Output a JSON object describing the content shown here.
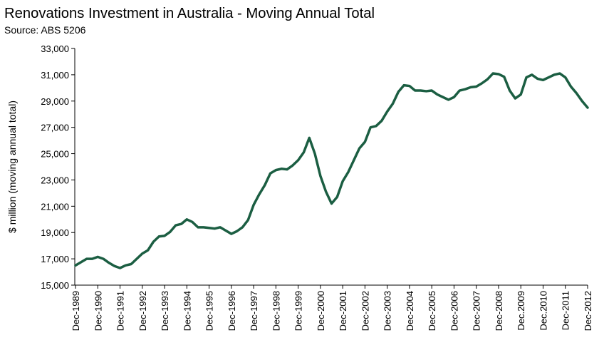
{
  "chart_data": {
    "type": "line",
    "title": "Renovations Investment in Australia - Moving Annual Total",
    "subtitle": "Source: ABS 5206",
    "y_label": "$ million (moving annual total)",
    "categories": [
      "Dec-1989",
      null,
      null,
      null,
      "Dec-1990",
      null,
      null,
      null,
      "Dec-1991",
      null,
      null,
      null,
      "Dec-1992",
      null,
      null,
      null,
      "Dec-1993",
      null,
      null,
      null,
      "Dec-1994",
      null,
      null,
      null,
      "Dec-1995",
      null,
      null,
      null,
      "Dec-1996",
      null,
      null,
      null,
      "Dec-1997",
      null,
      null,
      null,
      "Dec-1998",
      null,
      null,
      null,
      "Dec-1999",
      null,
      null,
      null,
      "Dec-2000",
      null,
      null,
      null,
      "Dec-2001",
      null,
      null,
      null,
      "Dec-2002",
      null,
      null,
      null,
      "Dec-2003",
      null,
      null,
      null,
      "Dec-2004",
      null,
      null,
      null,
      "Dec-2005",
      null,
      null,
      null,
      "Dec-2006",
      null,
      null,
      null,
      "Dec-2007",
      null,
      null,
      null,
      "Dec-2008",
      null,
      null,
      null,
      "Dec.2009",
      null,
      null,
      null,
      "Dec.2010",
      null,
      null,
      null,
      "Dec-2011",
      null,
      null,
      null,
      "Dec-2012"
    ],
    "series": [
      {
        "name": "Renovations investment",
        "color": "#1b5e42",
        "values": [
          16500,
          16750,
          17000,
          17000,
          17150,
          17000,
          16700,
          16450,
          16300,
          16500,
          16600,
          17000,
          17400,
          17650,
          18300,
          18700,
          18750,
          19050,
          19550,
          19650,
          20000,
          19800,
          19400,
          19400,
          19350,
          19300,
          19400,
          19150,
          18900,
          19100,
          19400,
          19950,
          21100,
          21900,
          22600,
          23500,
          23750,
          23850,
          23800,
          24100,
          24500,
          25100,
          26200,
          25000,
          23300,
          22100,
          21200,
          21700,
          22900,
          23600,
          24500,
          25400,
          25900,
          27000,
          27100,
          27500,
          28200,
          28800,
          29700,
          30200,
          30150,
          29800,
          29800,
          29750,
          29800,
          29500,
          29300,
          29100,
          29300,
          29800,
          29900,
          30050,
          30100,
          30350,
          30650,
          31100,
          31050,
          30850,
          29800,
          29200,
          29500,
          30800,
          31000,
          30700,
          30600,
          30800,
          31000,
          31100,
          30800,
          30100,
          29600,
          29000,
          28500
        ]
      }
    ],
    "ylim": [
      15000,
      33000
    ],
    "yticks": [
      {
        "value": 15000,
        "label": "15,000"
      },
      {
        "value": 17000,
        "label": "17,000"
      },
      {
        "value": 19000,
        "label": "19,000"
      },
      {
        "value": 21000,
        "label": "21,000"
      },
      {
        "value": 23000,
        "label": "23,000"
      },
      {
        "value": 25000,
        "label": "25,000"
      },
      {
        "value": 27000,
        "label": "27,000"
      },
      {
        "value": 29000,
        "label": "29,000"
      },
      {
        "value": 31000,
        "label": "31,000"
      },
      {
        "value": 33000,
        "label": "33,000"
      }
    ],
    "grid": false
  }
}
